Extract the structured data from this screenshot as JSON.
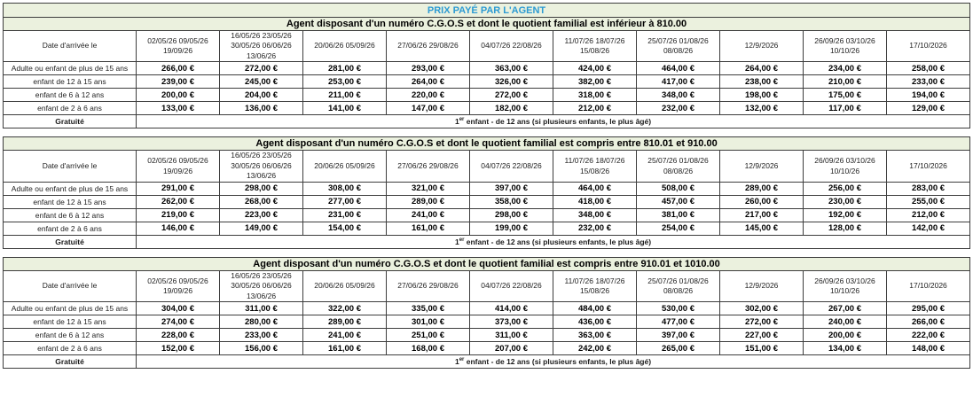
{
  "document": {
    "main_title": "PRIX PAYÉ PAR L'AGENT",
    "columns": [
      "Date d'arrivée le",
      "02/05/26 09/05/26\n19/09/26",
      "16/05/26 23/05/26\n30/05/26 06/06/26\n13/06/26",
      "20/06/26 05/09/26",
      "27/06/26 29/08/26",
      "04/07/26 22/08/26",
      "11/07/26 18/07/26\n15/08/26",
      "25/07/26 01/08/26\n08/08/26",
      "12/9/2026",
      "26/09/26 03/10/26\n10/10/26",
      "17/10/2026"
    ],
    "gratuite": {
      "label": "Gratuité",
      "note_num": "1",
      "note_sup": "er",
      "note_text": " enfant - de 12 ans (si plusieurs enfants, le plus âgé)"
    },
    "sections": [
      {
        "title": "Agent disposant d'un numéro C.G.O.S et dont le quotient familial est inférieur à 810.00",
        "rows": [
          {
            "label": "Adulte ou enfant de plus de 15 ans",
            "values": [
              "266,00 €",
              "272,00 €",
              "281,00 €",
              "293,00 €",
              "363,00 €",
              "424,00 €",
              "464,00 €",
              "264,00 €",
              "234,00 €",
              "258,00 €"
            ]
          },
          {
            "label": "enfant de 12 à 15 ans",
            "values": [
              "239,00 €",
              "245,00 €",
              "253,00 €",
              "264,00 €",
              "326,00 €",
              "382,00 €",
              "417,00 €",
              "238,00 €",
              "210,00 €",
              "233,00 €"
            ]
          },
          {
            "label": "enfant de 6 à 12 ans",
            "values": [
              "200,00 €",
              "204,00 €",
              "211,00 €",
              "220,00 €",
              "272,00 €",
              "318,00 €",
              "348,00 €",
              "198,00 €",
              "175,00 €",
              "194,00 €"
            ]
          },
          {
            "label": "enfant de 2 à 6 ans",
            "values": [
              "133,00 €",
              "136,00 €",
              "141,00 €",
              "147,00 €",
              "182,00 €",
              "212,00 €",
              "232,00 €",
              "132,00 €",
              "117,00 €",
              "129,00 €"
            ]
          }
        ]
      },
      {
        "title": "Agent disposant d'un numéro C.G.O.S et dont le quotient familial est compris entre 810.01 et 910.00",
        "rows": [
          {
            "label": "Adulte ou enfant de plus de 15 ans",
            "values": [
              "291,00 €",
              "298,00 €",
              "308,00 €",
              "321,00 €",
              "397,00 €",
              "464,00 €",
              "508,00 €",
              "289,00 €",
              "256,00 €",
              "283,00 €"
            ]
          },
          {
            "label": "enfant de 12 à 15 ans",
            "values": [
              "262,00 €",
              "268,00 €",
              "277,00 €",
              "289,00 €",
              "358,00 €",
              "418,00 €",
              "457,00 €",
              "260,00 €",
              "230,00 €",
              "255,00 €"
            ]
          },
          {
            "label": "enfant de 6 à 12 ans",
            "values": [
              "219,00 €",
              "223,00 €",
              "231,00 €",
              "241,00 €",
              "298,00 €",
              "348,00 €",
              "381,00 €",
              "217,00 €",
              "192,00 €",
              "212,00 €"
            ]
          },
          {
            "label": "enfant de 2 à 6 ans",
            "values": [
              "146,00 €",
              "149,00 €",
              "154,00 €",
              "161,00 €",
              "199,00 €",
              "232,00 €",
              "254,00 €",
              "145,00 €",
              "128,00 €",
              "142,00 €"
            ]
          }
        ]
      },
      {
        "title": "Agent disposant d'un numéro C.G.O.S et dont le quotient familial est compris entre 910.01 et 1010.00",
        "rows": [
          {
            "label": "Adulte ou enfant de plus de 15 ans",
            "values": [
              "304,00 €",
              "311,00 €",
              "322,00 €",
              "335,00 €",
              "414,00 €",
              "484,00 €",
              "530,00 €",
              "302,00 €",
              "267,00 €",
              "295,00 €"
            ]
          },
          {
            "label": "enfant de 12 à 15 ans",
            "values": [
              "274,00 €",
              "280,00 €",
              "289,00 €",
              "301,00 €",
              "373,00 €",
              "436,00 €",
              "477,00 €",
              "272,00 €",
              "240,00 €",
              "266,00 €"
            ]
          },
          {
            "label": "enfant de 6 à 12 ans",
            "values": [
              "228,00 €",
              "233,00 €",
              "241,00 €",
              "251,00 €",
              "311,00 €",
              "363,00 €",
              "397,00 €",
              "227,00 €",
              "200,00 €",
              "222,00 €"
            ]
          },
          {
            "label": "enfant de 2 à 6 ans",
            "values": [
              "152,00 €",
              "156,00 €",
              "161,00 €",
              "168,00 €",
              "207,00 €",
              "242,00 €",
              "265,00 €",
              "151,00 €",
              "134,00 €",
              "148,00 €"
            ]
          }
        ]
      }
    ]
  },
  "colors": {
    "header_bg": "#EBF1DE",
    "title_blue": "#2D9BD3",
    "border": "#3D3D3D"
  }
}
